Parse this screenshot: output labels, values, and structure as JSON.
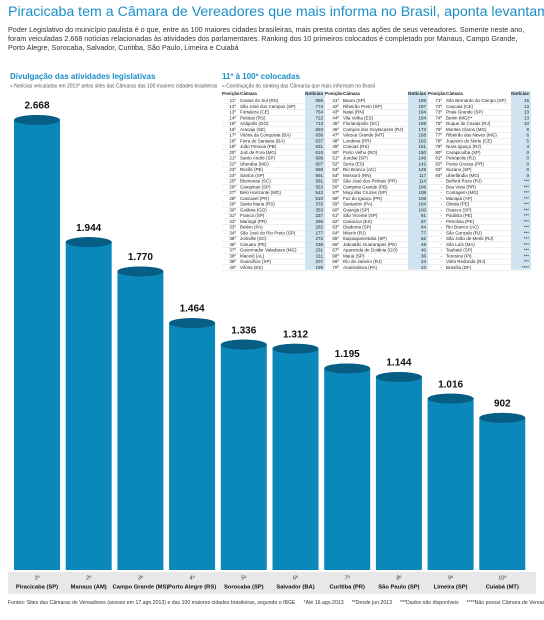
{
  "header": {
    "title": "Piracicaba tem a Câmara de Vereadores que mais informa no Brasil, aponta levantamento",
    "intro": "Poder Legislativo do município paulista é o que, entre as 100 maiores cidades brasileiras, mais presta contas das ações de seus vereadores. Somente neste ano, foram veiculadas 2.668 notícias relacionadas às atividades dos parlamentares. Ranking dos 10 primeiros colocados é completado por Manaus, Campo Grande, Porto Alegre, Sorocaba, Salvador, Curitiba, São Paulo, Limeira e Cuiabá"
  },
  "chart_data": {
    "type": "bar",
    "title": "Divulgação das atividades legislativas",
    "subtitle": "» Notícias veiculadas em 2013* pelos sites das Câmaras das 100 maiores cidades brasileiras",
    "color": "#0a88ba",
    "ranks": [
      "1º",
      "2º",
      "3º",
      "4º",
      "5º",
      "6º",
      "7º",
      "8º",
      "9º",
      "10º"
    ],
    "categories": [
      "Piracicaba (SP)",
      "Manaus (AM)",
      "Campo Grande (MS)",
      "Porto Alegre (RS)",
      "Sorocaba (SP)",
      "Salvador (BA)",
      "Curitiba (PR)",
      "São Paulo (SP)",
      "Limeira (SP)",
      "Cuiabá (MT)"
    ],
    "values": [
      2668,
      1944,
      1770,
      1464,
      1336,
      1312,
      1195,
      1144,
      1016,
      902
    ],
    "value_labels": [
      "2.668",
      "1.944",
      "1.770",
      "1.464",
      "1.336",
      "1.312",
      "1.195",
      "1.144",
      "1.016",
      "902"
    ]
  },
  "ranking": {
    "title": "11º à 100º colocadas",
    "subtitle": "» Continuação do ranking das Câmaras que mais informam no Brasil",
    "columns": [
      "Posição",
      "Câmara",
      "Notícias"
    ],
    "rows": [
      [
        "11º",
        "Caxias do Sul (RS)",
        "896"
      ],
      [
        "12º",
        "São José dos Campos (SP)",
        "774"
      ],
      [
        "13º",
        "Fortaleza (CE)",
        "754"
      ],
      [
        "14º",
        "Pelotas (RS)",
        "722"
      ],
      [
        "15º",
        "Anápolis (GO)",
        "713"
      ],
      [
        "16º",
        "Aracaju (SE)",
        "693"
      ],
      [
        "17º",
        "Vitória da Conquista (BA)",
        "638"
      ],
      [
        "18º",
        "Feira de Santana (BA)",
        "637"
      ],
      [
        "19º",
        "João Pessoa (PB)",
        "631"
      ],
      [
        "20º",
        "Juiz de Fora (MG)",
        "610"
      ],
      [
        "21º",
        "Santo André (SP)",
        "609"
      ],
      [
        "22º",
        "Uberaba (MG)",
        "607"
      ],
      [
        "23º",
        "Recife (PE)",
        "598"
      ],
      [
        "24º",
        "Santos (SP)",
        "591"
      ],
      [
        "25º",
        "Blumenau (SC)",
        "581"
      ],
      [
        "26º",
        "Campinas (SP)",
        "553"
      ],
      [
        "27º",
        "Belo Horizonte (MG)",
        "542"
      ],
      [
        "28º",
        "Cascavel (PR)",
        "510"
      ],
      [
        "29º",
        "Santa Maria (RS)",
        "376"
      ],
      [
        "30º",
        "Goiânia (GO)",
        "353"
      ],
      [
        "31º",
        "Franca (SP)",
        "337"
      ],
      [
        "32º",
        "Maringá (PR)",
        "296"
      ],
      [
        "33º",
        "Belém (PA)",
        "282"
      ],
      [
        "34º",
        "São José do Rio Preto (SP)",
        "277"
      ],
      [
        "35º",
        "Joinville (SC)",
        "272"
      ],
      [
        "36º",
        "Caruaru (PE)",
        "236"
      ],
      [
        "37º",
        "Governador Valadares (MG)",
        "231"
      ],
      [
        "38º",
        "Maceió (AL)",
        "211"
      ],
      [
        "39º",
        "Guarulhos (SP)",
        "207"
      ],
      [
        "40º",
        "Vitória (ES)",
        "199"
      ],
      [
        "41º",
        "Bauru (SP)",
        "198"
      ],
      [
        "42º",
        "Ribeirão Preto (SP)",
        "197"
      ],
      [
        "43º",
        "Natal (RN)",
        "194"
      ],
      [
        "44º",
        "Vila Velha (ES)",
        "194"
      ],
      [
        "45º",
        "Florianópolis (SC)",
        "189"
      ],
      [
        "46º",
        "Campos dos Goytacazes (RJ)",
        "173"
      ],
      [
        "47º",
        "Várzea Grande (MT)",
        "168"
      ],
      [
        "48º",
        "Londrina (PR)",
        "163"
      ],
      [
        "49º",
        "Canoas (RS)",
        "161"
      ],
      [
        "50º",
        "Porto Velho (RO)",
        "150"
      ],
      [
        "51º",
        "Jundiaí (SP)",
        "146"
      ],
      [
        "52º",
        "Serra (ES)",
        "142"
      ],
      [
        "53º",
        "Rio Branco (AC)",
        "129"
      ],
      [
        "54º",
        "Mossoró (RN)",
        "117"
      ],
      [
        "55º",
        "São José dos Pinhais (PR)",
        "114"
      ],
      [
        "56º",
        "Campina Grande (PB)",
        "108"
      ],
      [
        "57º",
        "Mogi das Cruzes (SP)",
        "108"
      ],
      [
        "58º",
        "Foz do Iguaçu (PR)",
        "106"
      ],
      [
        "59º",
        "Santarém (PA)",
        "104"
      ],
      [
        "60º",
        "Guarujá (SP)",
        "100"
      ],
      [
        "61º",
        "São Vicente (SP)",
        "91"
      ],
      [
        "62º",
        "Cariacica (ES)",
        "87"
      ],
      [
        "63º",
        "Diadema (SP)",
        "84"
      ],
      [
        "64º",
        "Niterói (RJ)",
        "77"
      ],
      [
        "65º",
        "Itaquaquecetuba (SP)",
        "62"
      ],
      [
        "66º",
        "Jaboatão Guararapes (PE)",
        "48"
      ],
      [
        "67º",
        "Aparecida de Goiânia (GO)",
        "40"
      ],
      [
        "68º",
        "Mauá (SP)",
        "36"
      ],
      [
        "69º",
        "Rio de Janeiro (RJ)",
        "24"
      ],
      [
        "70º",
        "Ananindeua (PA)",
        "23"
      ],
      [
        "71º",
        "São Bernardo do Campo (SP)",
        "15"
      ],
      [
        "72º",
        "Caucaia (CE)",
        "13"
      ],
      [
        "73º",
        "Praia Grande (SP)",
        "13"
      ],
      [
        "74º",
        "Betim (MG)**",
        "13"
      ],
      [
        "75º",
        "Duque de Caxias (RJ)",
        "10"
      ],
      [
        "76º",
        "Montes Claros (MG)",
        "9"
      ],
      [
        "77º",
        "Ribeirão das Neves (MG)",
        "6"
      ],
      [
        "78º",
        "Juazeiro do Norte (CE)",
        "5"
      ],
      [
        "79º",
        "Nova Iguaçu (RJ)",
        "4"
      ],
      [
        "80º",
        "Carapicuíba (SP)",
        "0"
      ],
      [
        "81º",
        "Petrópolis (RJ)",
        "0"
      ],
      [
        "82º",
        "Ponta Grossa (PR)",
        "0"
      ],
      [
        "83º",
        "Suzano (SP)",
        "0"
      ],
      [
        "84º",
        "Uberlândia (MG)",
        "0"
      ],
      [
        "-",
        "Belford Roxo (RJ)",
        "***"
      ],
      [
        "-",
        "Boa Vista (RR)",
        "***"
      ],
      [
        "-",
        "Contagem (MG)",
        "***"
      ],
      [
        "-",
        "Macapá (AP)",
        "***"
      ],
      [
        "-",
        "Olinda (PE)",
        "***"
      ],
      [
        "-",
        "Osasco (SP)",
        "***"
      ],
      [
        "-",
        "Paulista (PE)",
        "***"
      ],
      [
        "-",
        "Petrolina (PE)",
        "***"
      ],
      [
        "-",
        "Rio Branco (AC)",
        "***"
      ],
      [
        "-",
        "São Gonçalo (RJ)",
        "***"
      ],
      [
        "-",
        "São João de Meriti (RJ)",
        "***"
      ],
      [
        "-",
        "São Luís (MA)",
        "***"
      ],
      [
        "-",
        "Taubaté (SP)",
        "***"
      ],
      [
        "-",
        "Teresina (PI)",
        "***"
      ],
      [
        "-",
        "Volta Redonda (RJ)",
        "***"
      ],
      [
        "-",
        "Brasília (DF)",
        "****"
      ]
    ]
  },
  "footer": [
    "Fontes: Sites das Câmaras de Vereadores (acesso em 17.ago.2013) e das 100 maiores cidades brasileiras, segundo o IBGE",
    "*Até 16.ago.2013",
    "**Desde jun.2013",
    "***Dados não disponíveis",
    "****Não possui Câmara de Vereadores"
  ]
}
